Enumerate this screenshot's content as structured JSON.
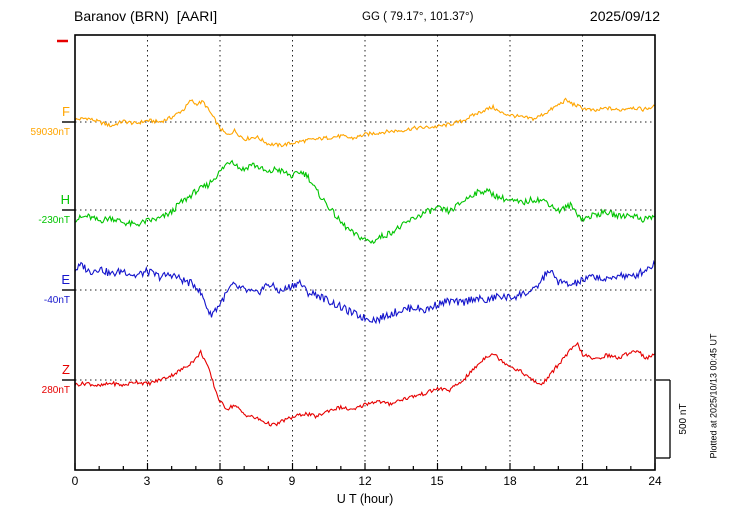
{
  "header": {
    "station": "Baranov (BRN)  [AARI]",
    "coords": "GG ( 79.17°, 101.37°)",
    "date": "2025/09/12"
  },
  "axes": {
    "x_label": "U T (hour)",
    "x_ticks": [
      "0",
      "3",
      "6",
      "9",
      "12",
      "15",
      "18",
      "21",
      "24"
    ]
  },
  "scale_bar": {
    "label": "500 nT",
    "nT": 500
  },
  "footer_note": "Plotted at 2025/10/13 00:45 UT",
  "components": [
    {
      "id": "F",
      "label": "F",
      "base_label": "59030nT",
      "base_value": 59030,
      "color": "#FFA500",
      "noise_nT": 12
    },
    {
      "id": "H",
      "label": "H",
      "base_label": "-230nT",
      "base_value": -230,
      "color": "#00C400",
      "noise_nT": 20
    },
    {
      "id": "E",
      "label": "E",
      "base_label": "-40nT",
      "base_value": -40,
      "color": "#1515CC",
      "noise_nT": 25
    },
    {
      "id": "Z",
      "label": "Z",
      "base_label": "280nT",
      "base_value": 280,
      "color": "#E60000",
      "noise_nT": 12
    }
  ],
  "chart_data": {
    "type": "line",
    "title": "Baranov (BRN) [AARI] magnetogram 2025/09/12",
    "xlabel": "U T (hour)",
    "x_range": [
      0,
      24
    ],
    "x_gridline_every_hours": 3,
    "grid": "dotted",
    "y_unit": "nT, offset from the baseline value printed under each component letter",
    "scale_bar_nT": 500,
    "series": [
      {
        "name": "F",
        "baseline_nT": 59030,
        "points": [
          [
            0,
            15
          ],
          [
            0.5,
            25
          ],
          [
            1,
            0
          ],
          [
            1.5,
            -25
          ],
          [
            2,
            5
          ],
          [
            2.5,
            -10
          ],
          [
            3,
            10
          ],
          [
            3.5,
            0
          ],
          [
            4,
            30
          ],
          [
            4.5,
            80
          ],
          [
            4.8,
            140
          ],
          [
            5,
            115
          ],
          [
            5.3,
            130
          ],
          [
            5.6,
            60
          ],
          [
            6,
            -40
          ],
          [
            6.3,
            -85
          ],
          [
            6.6,
            -55
          ],
          [
            7,
            -110
          ],
          [
            7.5,
            -95
          ],
          [
            8,
            -140
          ],
          [
            8.5,
            -150
          ],
          [
            9,
            -135
          ],
          [
            9.5,
            -120
          ],
          [
            10,
            -110
          ],
          [
            10.5,
            -100
          ],
          [
            11,
            -90
          ],
          [
            11.5,
            -105
          ],
          [
            12,
            -80
          ],
          [
            12.5,
            -70
          ],
          [
            13,
            -60
          ],
          [
            13.5,
            -55
          ],
          [
            14,
            -40
          ],
          [
            14.5,
            -35
          ],
          [
            15,
            -30
          ],
          [
            15.5,
            -15
          ],
          [
            16,
            5
          ],
          [
            16.5,
            45
          ],
          [
            17,
            80
          ],
          [
            17.3,
            95
          ],
          [
            17.6,
            60
          ],
          [
            18,
            45
          ],
          [
            18.5,
            30
          ],
          [
            19,
            20
          ],
          [
            19.5,
            60
          ],
          [
            20,
            110
          ],
          [
            20.3,
            140
          ],
          [
            20.6,
            115
          ],
          [
            21,
            90
          ],
          [
            21.5,
            70
          ],
          [
            22,
            90
          ],
          [
            22.5,
            75
          ],
          [
            23,
            95
          ],
          [
            23.5,
            80
          ],
          [
            24,
            100
          ]
        ]
      },
      {
        "name": "H",
        "baseline_nT": -230,
        "points": [
          [
            0,
            -60
          ],
          [
            0.5,
            -40
          ],
          [
            1,
            -70
          ],
          [
            1.5,
            -50
          ],
          [
            2,
            -80
          ],
          [
            2.5,
            -95
          ],
          [
            3,
            -70
          ],
          [
            3.5,
            -55
          ],
          [
            4,
            -15
          ],
          [
            4.3,
            40
          ],
          [
            4.6,
            70
          ],
          [
            5,
            120
          ],
          [
            5.5,
            160
          ],
          [
            6,
            245
          ],
          [
            6.3,
            300
          ],
          [
            6.5,
            320
          ],
          [
            6.8,
            270
          ],
          [
            7,
            260
          ],
          [
            7.3,
            295
          ],
          [
            7.6,
            275
          ],
          [
            8,
            235
          ],
          [
            8.3,
            265
          ],
          [
            8.6,
            245
          ],
          [
            9,
            215
          ],
          [
            9.3,
            245
          ],
          [
            9.6,
            225
          ],
          [
            10,
            120
          ],
          [
            10.5,
            20
          ],
          [
            11,
            -80
          ],
          [
            11.5,
            -150
          ],
          [
            12,
            -190
          ],
          [
            12.3,
            -205
          ],
          [
            12.6,
            -175
          ],
          [
            13,
            -150
          ],
          [
            13.5,
            -105
          ],
          [
            14,
            -55
          ],
          [
            14.5,
            -15
          ],
          [
            15,
            10
          ],
          [
            15.5,
            -10
          ],
          [
            16,
            50
          ],
          [
            16.5,
            105
          ],
          [
            17,
            125
          ],
          [
            17.5,
            85
          ],
          [
            18,
            60
          ],
          [
            18.5,
            45
          ],
          [
            19,
            70
          ],
          [
            19.5,
            55
          ],
          [
            20,
            -5
          ],
          [
            20.5,
            30
          ],
          [
            21,
            -60
          ],
          [
            21.5,
            -30
          ],
          [
            22,
            -15
          ],
          [
            22.5,
            -40
          ],
          [
            23,
            -30
          ],
          [
            23.5,
            -60
          ],
          [
            24,
            -40
          ]
        ]
      },
      {
        "name": "E",
        "baseline_nT": -40,
        "points": [
          [
            0,
            130
          ],
          [
            0.3,
            160
          ],
          [
            0.6,
            115
          ],
          [
            1,
            140
          ],
          [
            1.5,
            100
          ],
          [
            2,
            125
          ],
          [
            2.5,
            90
          ],
          [
            3,
            120
          ],
          [
            3.5,
            85
          ],
          [
            4,
            100
          ],
          [
            4.5,
            60
          ],
          [
            5,
            30
          ],
          [
            5.3,
            -50
          ],
          [
            5.6,
            -160
          ],
          [
            5.9,
            -110
          ],
          [
            6.2,
            -40
          ],
          [
            6.5,
            30
          ],
          [
            7,
            0
          ],
          [
            7.5,
            -25
          ],
          [
            8,
            40
          ],
          [
            8.5,
            -10
          ],
          [
            9,
            30
          ],
          [
            9.3,
            50
          ],
          [
            9.6,
            -15
          ],
          [
            10,
            -30
          ],
          [
            10.5,
            -70
          ],
          [
            11,
            -110
          ],
          [
            11.5,
            -150
          ],
          [
            12,
            -180
          ],
          [
            12.5,
            -190
          ],
          [
            13,
            -155
          ],
          [
            13.5,
            -130
          ],
          [
            14,
            -110
          ],
          [
            14.5,
            -130
          ],
          [
            15,
            -90
          ],
          [
            15.5,
            -70
          ],
          [
            16,
            -85
          ],
          [
            16.5,
            -50
          ],
          [
            17,
            -70
          ],
          [
            17.5,
            -40
          ],
          [
            18,
            -50
          ],
          [
            18.5,
            -25
          ],
          [
            19,
            -5
          ],
          [
            19.3,
            60
          ],
          [
            19.6,
            130
          ],
          [
            20,
            55
          ],
          [
            20.5,
            30
          ],
          [
            21,
            60
          ],
          [
            21.5,
            90
          ],
          [
            22,
            60
          ],
          [
            22.5,
            100
          ],
          [
            23,
            80
          ],
          [
            23.5,
            120
          ],
          [
            24,
            170
          ]
        ]
      },
      {
        "name": "Z",
        "baseline_nT": 280,
        "points": [
          [
            0,
            -30
          ],
          [
            0.5,
            -20
          ],
          [
            1,
            -40
          ],
          [
            1.5,
            -20
          ],
          [
            2,
            -35
          ],
          [
            2.5,
            -10
          ],
          [
            3,
            -25
          ],
          [
            3.5,
            0
          ],
          [
            4,
            30
          ],
          [
            4.5,
            75
          ],
          [
            5,
            135
          ],
          [
            5.2,
            180
          ],
          [
            5.4,
            120
          ],
          [
            5.6,
            40
          ],
          [
            5.8,
            -60
          ],
          [
            6,
            -140
          ],
          [
            6.3,
            -185
          ],
          [
            6.6,
            -160
          ],
          [
            7,
            -220
          ],
          [
            7.5,
            -245
          ],
          [
            8,
            -280
          ],
          [
            8.3,
            -290
          ],
          [
            8.6,
            -260
          ],
          [
            9,
            -240
          ],
          [
            9.5,
            -215
          ],
          [
            10,
            -235
          ],
          [
            10.5,
            -195
          ],
          [
            11,
            -175
          ],
          [
            11.5,
            -195
          ],
          [
            12,
            -155
          ],
          [
            12.5,
            -135
          ],
          [
            13,
            -155
          ],
          [
            13.5,
            -125
          ],
          [
            14,
            -105
          ],
          [
            14.5,
            -85
          ],
          [
            15,
            -55
          ],
          [
            15.5,
            -65
          ],
          [
            16,
            -10
          ],
          [
            16.5,
            70
          ],
          [
            17,
            150
          ],
          [
            17.3,
            170
          ],
          [
            17.6,
            130
          ],
          [
            18,
            90
          ],
          [
            18.5,
            50
          ],
          [
            19,
            -10
          ],
          [
            19.3,
            -30
          ],
          [
            19.6,
            20
          ],
          [
            20,
            100
          ],
          [
            20.5,
            190
          ],
          [
            20.8,
            230
          ],
          [
            21,
            165
          ],
          [
            21.5,
            130
          ],
          [
            22,
            160
          ],
          [
            22.5,
            140
          ],
          [
            23,
            180
          ],
          [
            23.3,
            190
          ],
          [
            23.6,
            140
          ],
          [
            24,
            160
          ]
        ]
      }
    ]
  }
}
